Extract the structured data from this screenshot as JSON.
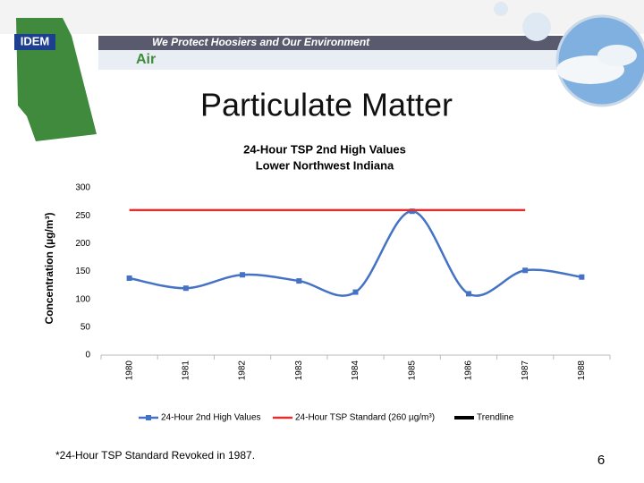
{
  "slide": {
    "logo": "IDEM",
    "tagline": "We Protect Hoosiers and Our Environment",
    "section": "Air",
    "heading": "Particulate Matter",
    "footnote": "*24-Hour TSP Standard Revoked in 1987.",
    "page": "6"
  },
  "chart_data": {
    "type": "line",
    "title": [
      "24-Hour TSP 2nd High Values",
      "Lower Northwest Indiana"
    ],
    "y_label": "Concentration (µg/m³)",
    "categories": [
      "1980",
      "1981",
      "1982",
      "1983",
      "1984",
      "1985",
      "1986",
      "1987",
      "1988"
    ],
    "series": [
      {
        "name": "24-Hour 2nd High Values",
        "color": "#4472c4",
        "smooth": true,
        "markers": true,
        "values": [
          138,
          120,
          144,
          133,
          113,
          258,
          110,
          152,
          140
        ]
      },
      {
        "name": "24-Hour TSP Standard (260 µg/m³)",
        "color": "#e03030",
        "values": [
          260,
          260,
          260,
          260,
          260,
          260,
          260,
          260,
          null
        ]
      },
      {
        "name": "Trendline",
        "color": "#000000"
      }
    ],
    "ylim": [
      0,
      300
    ],
    "yticks": [
      0,
      50,
      100,
      150,
      200,
      250,
      300
    ],
    "grid": false,
    "legend": "bottom"
  }
}
